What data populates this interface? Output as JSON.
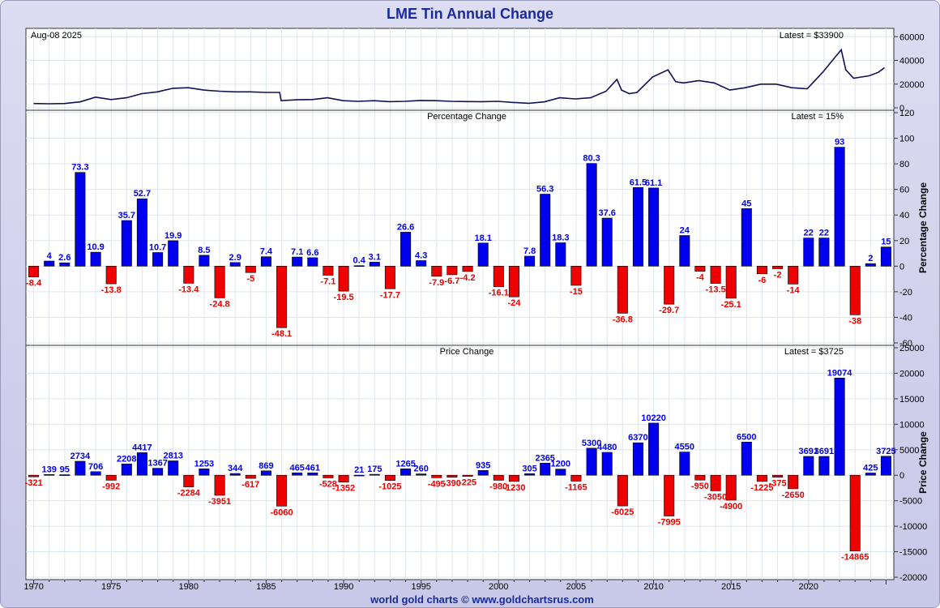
{
  "header": {
    "title": "LME Tin Annual Change"
  },
  "footer": {
    "credit": "world gold charts © www.goldchartsrus.com"
  },
  "colors": {
    "positive": "#0000ee",
    "negative": "#ee0000",
    "price_line": "#111155",
    "grid": "#dde6ec",
    "title": "#1a2a9c"
  },
  "chart_data": [
    {
      "type": "line",
      "date_label": "Aug-08  2025",
      "latest_label": "Latest = $33900",
      "ylim": [
        0,
        65000
      ],
      "yticks": [
        0,
        20000,
        40000,
        60000
      ],
      "x_range": [
        1969.5,
        2025.6
      ],
      "x": [
        1970,
        1971,
        1972,
        1973,
        1974,
        1975,
        1976,
        1977,
        1978,
        1979,
        1980,
        1981,
        1982,
        1983,
        1984,
        1985,
        1985.9,
        1986,
        1987,
        1988,
        1989,
        1990,
        1991,
        1992,
        1993,
        1994,
        1995,
        1996,
        1997,
        1998,
        1999,
        2000,
        2001,
        2002,
        2003,
        2004,
        2005,
        2006,
        2007,
        2007.7,
        2008,
        2008.5,
        2009,
        2010,
        2011,
        2011.5,
        2012,
        2013,
        2014,
        2015,
        2016,
        2017,
        2018,
        2019,
        2020,
        2021,
        2022.2,
        2022.5,
        2023,
        2023.5,
        2024,
        2024.6,
        2025
      ],
      "values": [
        3600,
        3400,
        3600,
        5000,
        9000,
        7000,
        8500,
        12000,
        13500,
        16500,
        17000,
        15000,
        14000,
        13500,
        13500,
        13000,
        13000,
        6000,
        6800,
        7000,
        8500,
        6000,
        5500,
        6000,
        5200,
        5500,
        6200,
        6000,
        5500,
        5300,
        5200,
        5500,
        4500,
        3800,
        5000,
        8500,
        7500,
        8500,
        14000,
        24000,
        15000,
        12000,
        13000,
        26000,
        32000,
        22000,
        21000,
        23000,
        21000,
        15000,
        17000,
        20000,
        20000,
        17000,
        16000,
        30000,
        49000,
        32000,
        25000,
        26000,
        27000,
        30000,
        33900
      ]
    },
    {
      "type": "bar",
      "label": "Percentage Change",
      "latest_label": "Latest = 15%",
      "ylabel": "Percentage Change",
      "ylim": [
        -60,
        120
      ],
      "yticks": [
        -60,
        -40,
        -20,
        0,
        20,
        40,
        60,
        80,
        100,
        120
      ],
      "categories": [
        1970,
        1971,
        1972,
        1973,
        1974,
        1975,
        1976,
        1977,
        1978,
        1979,
        1980,
        1981,
        1982,
        1983,
        1984,
        1985,
        1986,
        1987,
        1988,
        1989,
        1990,
        1991,
        1992,
        1993,
        1994,
        1995,
        1996,
        1997,
        1998,
        1999,
        2000,
        2001,
        2002,
        2003,
        2004,
        2005,
        2006,
        2007,
        2008,
        2009,
        2010,
        2011,
        2012,
        2013,
        2014,
        2015,
        2016,
        2017,
        2018,
        2019,
        2020,
        2021,
        2022,
        2023,
        2024,
        2025
      ],
      "values": [
        -8.4,
        4,
        2.6,
        73.3,
        10.9,
        -13.8,
        35.7,
        52.7,
        10.7,
        19.9,
        -13.4,
        8.5,
        -24.8,
        2.9,
        -5,
        7.4,
        -48.1,
        7.1,
        6.6,
        -7.1,
        -19.5,
        0.4,
        3.1,
        -17.7,
        26.6,
        4.3,
        -7.9,
        -6.7,
        -4.2,
        18.1,
        -16.1,
        -24,
        7.8,
        56.3,
        18.3,
        -15,
        80.3,
        37.6,
        -36.8,
        61.5,
        61.1,
        -29.7,
        24,
        -4,
        -13.5,
        -25.1,
        45,
        -6,
        -2,
        -14,
        22,
        22,
        93,
        -38,
        2,
        15
      ]
    },
    {
      "type": "bar",
      "label": "Price Change",
      "latest_label": "Latest = $3725",
      "ylabel": "Price Change",
      "ylim": [
        -20000,
        25000
      ],
      "yticks": [
        -20000,
        -15000,
        -10000,
        -5000,
        0,
        5000,
        10000,
        15000,
        20000,
        25000
      ],
      "categories": [
        1970,
        1971,
        1972,
        1973,
        1974,
        1975,
        1976,
        1977,
        1978,
        1979,
        1980,
        1981,
        1982,
        1983,
        1984,
        1985,
        1986,
        1987,
        1988,
        1989,
        1990,
        1991,
        1992,
        1993,
        1994,
        1995,
        1996,
        1997,
        1998,
        1999,
        2000,
        2001,
        2002,
        2003,
        2004,
        2005,
        2006,
        2007,
        2008,
        2009,
        2010,
        2011,
        2012,
        2013,
        2014,
        2015,
        2016,
        2017,
        2018,
        2019,
        2020,
        2021,
        2022,
        2023,
        2024,
        2025
      ],
      "values": [
        -321,
        139,
        95,
        2734,
        706,
        -992,
        2208,
        4417,
        1367,
        2813,
        -2284,
        1253,
        -3951,
        344,
        -617,
        869,
        -6060,
        465,
        461,
        -528,
        -1352,
        21,
        175,
        -1025,
        1265,
        260,
        -495,
        -390,
        -225,
        935,
        -980,
        -1230,
        305,
        2365,
        1200,
        -1165,
        5300,
        4480,
        -6025,
        6370,
        10220,
        -7995,
        4550,
        -950,
        -3050,
        -4900,
        6500,
        -1225,
        -375,
        -2650,
        3691,
        3691,
        19074,
        -14865,
        425,
        3725
      ]
    }
  ],
  "x_axis": {
    "ticks": [
      1970,
      1975,
      1980,
      1985,
      1990,
      1995,
      2000,
      2005,
      2010,
      2015,
      2020
    ]
  }
}
